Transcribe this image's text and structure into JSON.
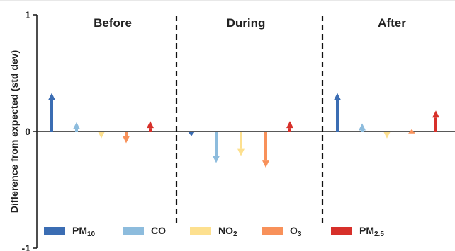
{
  "chart_data": {
    "type": "bar",
    "ylabel": "Difference from expected (std dev)",
    "ylim": [
      -1,
      1
    ],
    "yticks": [
      "1",
      "0",
      "-1"
    ],
    "panels": [
      "Before",
      "During",
      "After"
    ],
    "series": [
      {
        "name": "PM",
        "sub": "10",
        "color": "#3B6DB3",
        "values": [
          0.33,
          -0.04,
          0.33
        ]
      },
      {
        "name": "CO",
        "sub": "",
        "color": "#8DBCDD",
        "values": [
          0.08,
          -0.27,
          0.07
        ]
      },
      {
        "name": "NO",
        "sub": "2",
        "color": "#FDE08F",
        "values": [
          -0.06,
          -0.21,
          -0.06
        ]
      },
      {
        "name": "O",
        "sub": "3",
        "color": "#F8915A",
        "values": [
          -0.1,
          -0.31,
          0.02
        ]
      },
      {
        "name": "PM",
        "sub": "2.5",
        "color": "#D7302A",
        "values": [
          0.09,
          0.09,
          0.18
        ]
      }
    ],
    "legend_position": "bottom",
    "grid": false
  }
}
